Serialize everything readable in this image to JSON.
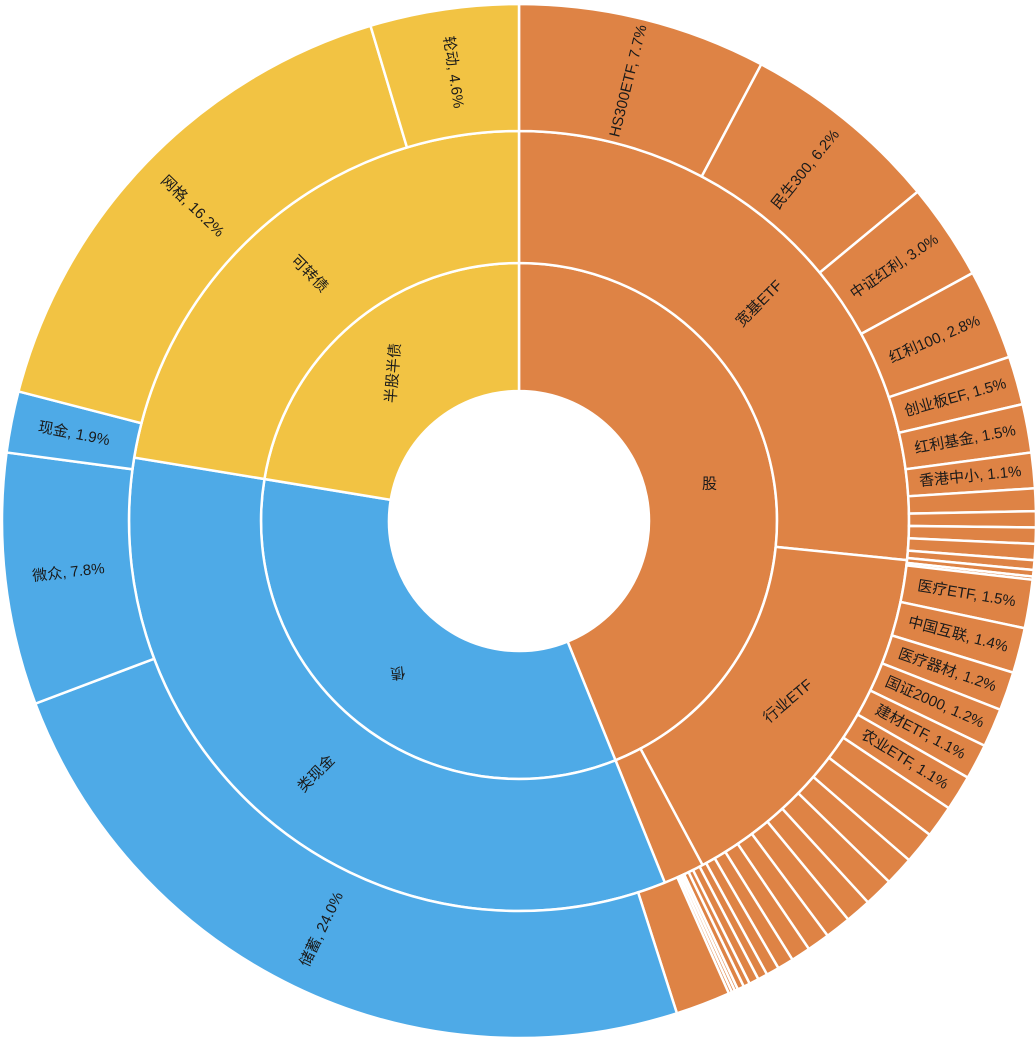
{
  "chart_data": {
    "type": "sunburst",
    "title": "",
    "colors": {
      "股": "#DE8345",
      "债": "#4EAAE7",
      "半股半债": "#F2C343"
    },
    "rings": [
      [
        {
          "name": "股",
          "value": 43.9,
          "color": "#DE8345",
          "label": "股"
        },
        {
          "name": "债",
          "value": 33.7,
          "color": "#4EAAE7",
          "label": "债"
        },
        {
          "name": "半股半债",
          "value": 22.4,
          "color": "#F2C343",
          "label": "半股半债"
        }
      ],
      [
        {
          "name": "宽基ETF",
          "value": 26.6,
          "color": "#DE8345",
          "label": "宽基ETF"
        },
        {
          "name": "行业ETF",
          "value": 15.6,
          "color": "#DE8345",
          "label": "行业ETF"
        },
        {
          "name": "",
          "value": 1.7,
          "color": "#DE8345",
          "label": ""
        },
        {
          "name": "类现金",
          "value": 33.7,
          "color": "#4EAAE7",
          "label": "类现金"
        },
        {
          "name": "可转债",
          "value": 22.4,
          "color": "#F2C343",
          "label": "可转债"
        }
      ],
      [
        {
          "name": "HS300ETF",
          "value": 7.7,
          "color": "#DE8345",
          "label": "HS300ETF, 7.7%"
        },
        {
          "name": "民生300",
          "value": 6.2,
          "color": "#DE8345",
          "label": "民生300, 6.2%"
        },
        {
          "name": "中证红利",
          "value": 3.0,
          "color": "#DE8345",
          "label": "中证红利, 3.0%"
        },
        {
          "name": "红利100",
          "value": 2.8,
          "color": "#DE8345",
          "label": "红利100, 2.8%"
        },
        {
          "name": "创业板EF",
          "value": 1.5,
          "color": "#DE8345",
          "label": "创业板EF, 1.5%"
        },
        {
          "name": "红利基金",
          "value": 1.5,
          "color": "#DE8345",
          "label": "红利基金, 1.5%"
        },
        {
          "name": "香港中小",
          "value": 1.1,
          "color": "#DE8345",
          "label": "香港中小, 1.1%"
        },
        {
          "name": "",
          "value": 0.7,
          "color": "#DE8345",
          "label": ""
        },
        {
          "name": "",
          "value": 0.5,
          "color": "#DE8345",
          "label": ""
        },
        {
          "name": "",
          "value": 0.5,
          "color": "#DE8345",
          "label": ""
        },
        {
          "name": "",
          "value": 0.5,
          "color": "#DE8345",
          "label": ""
        },
        {
          "name": "",
          "value": 0.3,
          "color": "#DE8345",
          "label": ""
        },
        {
          "name": "",
          "value": 0.2,
          "color": "#DE8345",
          "label": ""
        },
        {
          "name": "",
          "value": 0.1,
          "color": "#DE8345",
          "label": ""
        },
        {
          "name": "医疗ETF",
          "value": 1.5,
          "color": "#DE8345",
          "label": "医疗ETF, 1.5%"
        },
        {
          "name": "中国互联",
          "value": 1.4,
          "color": "#DE8345",
          "label": "中国互联, 1.4%"
        },
        {
          "name": "医疗器材",
          "value": 1.2,
          "color": "#DE8345",
          "label": "医疗器材, 1.2%"
        },
        {
          "name": "国证2000",
          "value": 1.2,
          "color": "#DE8345",
          "label": "国证2000, 1.2%"
        },
        {
          "name": "建材ETF",
          "value": 1.1,
          "color": "#DE8345",
          "label": "建材ETF, 1.1%"
        },
        {
          "name": "农业ETF",
          "value": 1.1,
          "color": "#DE8345",
          "label": "农业ETF, 1.1%"
        },
        {
          "name": "",
          "value": 1.0,
          "color": "#DE8345",
          "label": ""
        },
        {
          "name": "",
          "value": 1.0,
          "color": "#DE8345",
          "label": ""
        },
        {
          "name": "",
          "value": 0.9,
          "color": "#DE8345",
          "label": ""
        },
        {
          "name": "",
          "value": 0.9,
          "color": "#DE8345",
          "label": ""
        },
        {
          "name": "",
          "value": 0.8,
          "color": "#DE8345",
          "label": ""
        },
        {
          "name": "",
          "value": 0.8,
          "color": "#DE8345",
          "label": ""
        },
        {
          "name": "",
          "value": 0.7,
          "color": "#DE8345",
          "label": ""
        },
        {
          "name": "",
          "value": 0.6,
          "color": "#DE8345",
          "label": ""
        },
        {
          "name": "",
          "value": 0.5,
          "color": "#DE8345",
          "label": ""
        },
        {
          "name": "",
          "value": 0.4,
          "color": "#DE8345",
          "label": ""
        },
        {
          "name": "",
          "value": 0.3,
          "color": "#DE8345",
          "label": ""
        },
        {
          "name": "",
          "value": 0.3,
          "color": "#DE8345",
          "label": ""
        },
        {
          "name": "",
          "value": 0.2,
          "color": "#DE8345",
          "label": ""
        },
        {
          "name": "",
          "value": 0.2,
          "color": "#DE8345",
          "label": ""
        },
        {
          "name": "",
          "value": 0.1,
          "color": "#DE8345",
          "label": ""
        },
        {
          "name": "",
          "value": 0.1,
          "color": "#DE8345",
          "label": ""
        },
        {
          "name": "",
          "value": 0.1,
          "color": "#DE8345",
          "label": ""
        },
        {
          "name": "",
          "value": 1.7,
          "color": "#DE8345",
          "label": ""
        },
        {
          "name": "储蓄",
          "value": 24.0,
          "color": "#4EAAE7",
          "label": "储蓄, 24.0%"
        },
        {
          "name": "微众",
          "value": 7.8,
          "color": "#4EAAE7",
          "label": "微众, 7.8%"
        },
        {
          "name": "现金",
          "value": 1.9,
          "color": "#4EAAE7",
          "label": "现金, 1.9%"
        },
        {
          "name": "网格",
          "value": 16.2,
          "color": "#F2C343",
          "label": "网格, 16.2%"
        },
        {
          "name": "轮动",
          "value": 4.6,
          "color": "#F2C343",
          "label": "轮动, 4.6%"
        }
      ]
    ]
  }
}
